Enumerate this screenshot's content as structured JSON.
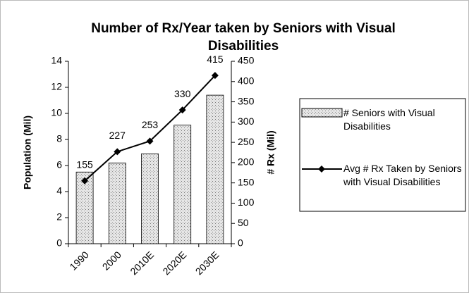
{
  "chart_data": {
    "type": "combo",
    "title": "Number of Rx/Year taken by Seniors with Visual Disabilities",
    "categories": [
      "1990",
      "2000",
      "2010E",
      "2020E",
      "2030E"
    ],
    "series": [
      {
        "name": "# Seniors with Visual Disabilities",
        "type": "bar",
        "color": "#e6e6e6",
        "values": [
          5.5,
          6.2,
          6.9,
          9.1,
          11.4
        ]
      },
      {
        "name": "Avg # Rx Taken by Seniors with Visual Disabilities",
        "type": "line",
        "axis": "y2",
        "color": "#000000",
        "values": [
          155,
          227,
          253,
          330,
          415
        ]
      }
    ],
    "ylabel": "Population (Mil)",
    "y2label": "# Rx (Mil)",
    "ylim": [
      0,
      14
    ],
    "yticks": [
      0,
      2,
      4,
      6,
      8,
      10,
      12,
      14
    ],
    "y2lim": [
      0,
      450
    ],
    "y2ticks": [
      0,
      50,
      100,
      150,
      200,
      250,
      300,
      350,
      400,
      450
    ],
    "grid": false,
    "legend": "right"
  }
}
